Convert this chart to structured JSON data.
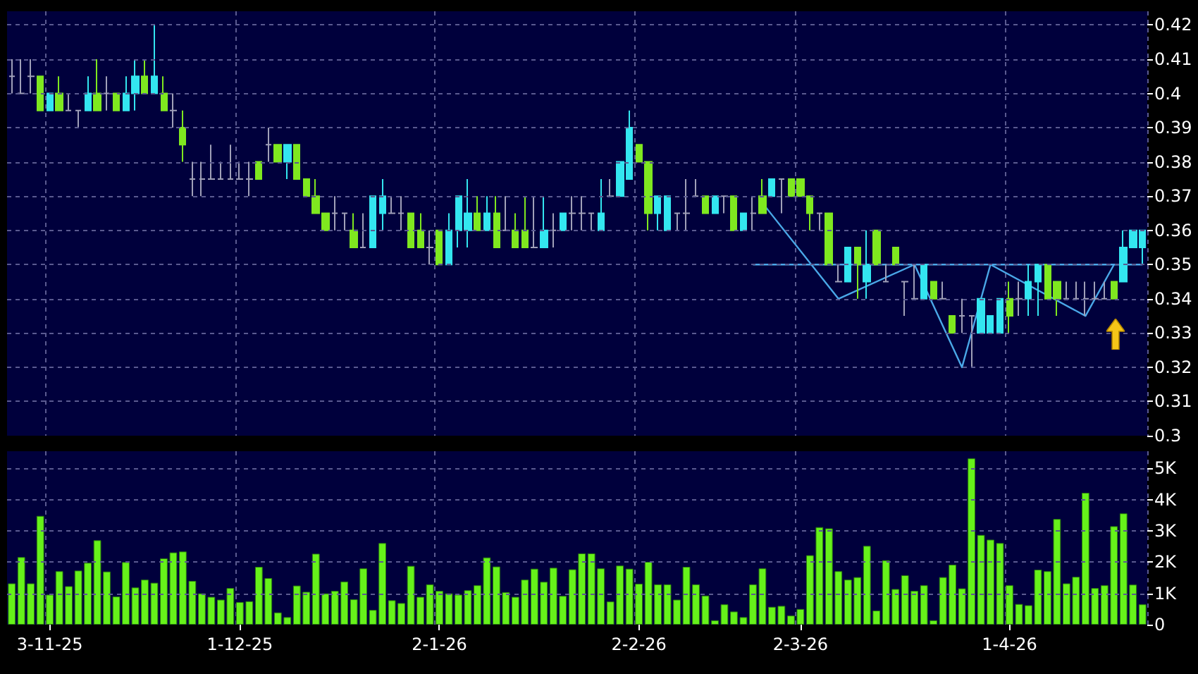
{
  "chart_data": [
    {
      "type": "candlestick",
      "tick_labels": "y",
      "grid": true,
      "line_style": "solid",
      "categories": [
        null,
        null,
        null,
        null,
        null,
        null,
        null,
        null,
        null,
        null,
        null,
        null,
        null,
        null,
        null,
        null,
        null,
        null,
        null,
        null,
        null,
        null,
        null,
        null,
        null,
        null,
        null,
        null,
        null,
        null,
        null,
        null,
        null,
        null,
        null,
        null,
        null,
        null,
        null,
        null,
        null,
        null,
        null,
        null,
        null,
        null,
        null,
        null,
        null,
        null,
        null,
        null,
        null,
        null,
        null,
        null,
        null,
        null,
        null,
        null,
        null,
        null,
        null,
        null,
        null,
        null,
        null,
        null,
        null,
        null,
        null,
        null,
        null,
        null,
        null,
        null,
        null,
        null,
        null,
        null,
        null,
        null,
        null,
        null,
        null,
        null,
        null,
        null,
        null,
        null,
        null,
        null,
        null,
        null,
        null,
        null,
        null,
        null,
        null,
        null,
        null,
        null,
        null,
        null,
        null,
        null,
        null,
        null,
        null,
        null,
        null,
        null,
        null,
        null,
        null,
        null,
        null,
        null,
        null,
        null
      ],
      "ylim": [
        0.3,
        0.424
      ],
      "yticks": [
        0.3,
        0.31,
        0.32,
        0.33,
        0.34,
        0.35,
        0.36,
        0.37,
        0.38,
        0.39,
        0.4,
        0.41,
        0.42
      ],
      "ohlc": [
        [
          0.405,
          0.41,
          0.4,
          0.405
        ],
        [
          0.4,
          0.41,
          0.4,
          0.4
        ],
        [
          0.405,
          0.41,
          0.4,
          0.405
        ],
        [
          0.405,
          0.405,
          0.395,
          0.395
        ],
        [
          0.395,
          0.4,
          0.395,
          0.4
        ],
        [
          0.4,
          0.405,
          0.395,
          0.395
        ],
        [
          0.395,
          0.4,
          0.395,
          0.395
        ],
        [
          0.395,
          0.395,
          0.39,
          0.395
        ],
        [
          0.395,
          0.405,
          0.395,
          0.4
        ],
        [
          0.4,
          0.41,
          0.395,
          0.395
        ],
        [
          0.4,
          0.405,
          0.395,
          0.4
        ],
        [
          0.4,
          0.4,
          0.395,
          0.395
        ],
        [
          0.395,
          0.405,
          0.395,
          0.4
        ],
        [
          0.4,
          0.41,
          0.395,
          0.405
        ],
        [
          0.405,
          0.41,
          0.4,
          0.4
        ],
        [
          0.4,
          0.42,
          0.4,
          0.405
        ],
        [
          0.4,
          0.405,
          0.395,
          0.395
        ],
        [
          0.395,
          0.4,
          0.39,
          0.395
        ],
        [
          0.39,
          0.395,
          0.38,
          0.385
        ],
        [
          0.375,
          0.38,
          0.37,
          0.375
        ],
        [
          0.375,
          0.38,
          0.37,
          0.375
        ],
        [
          0.375,
          0.385,
          0.375,
          0.375
        ],
        [
          0.375,
          0.38,
          0.375,
          0.375
        ],
        [
          0.375,
          0.385,
          0.375,
          0.375
        ],
        [
          0.375,
          0.38,
          0.375,
          0.375
        ],
        [
          0.375,
          0.38,
          0.37,
          0.375
        ],
        [
          0.38,
          0.38,
          0.375,
          0.375
        ],
        [
          0.385,
          0.39,
          0.38,
          0.385
        ],
        [
          0.385,
          0.385,
          0.38,
          0.38
        ],
        [
          0.38,
          0.385,
          0.375,
          0.385
        ],
        [
          0.385,
          0.385,
          0.375,
          0.375
        ],
        [
          0.375,
          0.375,
          0.37,
          0.37
        ],
        [
          0.37,
          0.375,
          0.365,
          0.365
        ],
        [
          0.365,
          0.365,
          0.36,
          0.36
        ],
        [
          0.365,
          0.37,
          0.36,
          0.365
        ],
        [
          0.365,
          0.365,
          0.36,
          0.365
        ],
        [
          0.36,
          0.365,
          0.355,
          0.355
        ],
        [
          0.355,
          0.365,
          0.355,
          0.355
        ],
        [
          0.355,
          0.37,
          0.355,
          0.37
        ],
        [
          0.365,
          0.375,
          0.36,
          0.37
        ],
        [
          0.365,
          0.37,
          0.365,
          0.365
        ],
        [
          0.365,
          0.37,
          0.36,
          0.365
        ],
        [
          0.365,
          0.365,
          0.355,
          0.355
        ],
        [
          0.36,
          0.365,
          0.355,
          0.355
        ],
        [
          0.355,
          0.36,
          0.35,
          0.355
        ],
        [
          0.36,
          0.36,
          0.35,
          0.35
        ],
        [
          0.35,
          0.365,
          0.35,
          0.36
        ],
        [
          0.36,
          0.37,
          0.355,
          0.37
        ],
        [
          0.36,
          0.375,
          0.355,
          0.365
        ],
        [
          0.365,
          0.37,
          0.36,
          0.36
        ],
        [
          0.36,
          0.37,
          0.36,
          0.365
        ],
        [
          0.365,
          0.37,
          0.355,
          0.355
        ],
        [
          0.36,
          0.37,
          0.36,
          0.36
        ],
        [
          0.36,
          0.365,
          0.355,
          0.355
        ],
        [
          0.36,
          0.37,
          0.355,
          0.355
        ],
        [
          0.355,
          0.37,
          0.355,
          0.355
        ],
        [
          0.355,
          0.37,
          0.355,
          0.36
        ],
        [
          0.36,
          0.365,
          0.355,
          0.36
        ],
        [
          0.36,
          0.365,
          0.36,
          0.365
        ],
        [
          0.365,
          0.37,
          0.36,
          0.365
        ],
        [
          0.365,
          0.37,
          0.36,
          0.365
        ],
        [
          0.365,
          0.365,
          0.36,
          0.365
        ],
        [
          0.36,
          0.375,
          0.36,
          0.365
        ],
        [
          0.37,
          0.375,
          0.37,
          0.37
        ],
        [
          0.37,
          0.38,
          0.37,
          0.38
        ],
        [
          0.375,
          0.395,
          0.375,
          0.39
        ],
        [
          0.385,
          0.385,
          0.38,
          0.38
        ],
        [
          0.38,
          0.38,
          0.36,
          0.365
        ],
        [
          0.365,
          0.37,
          0.36,
          0.37
        ],
        [
          0.36,
          0.37,
          0.36,
          0.37
        ],
        [
          0.365,
          0.365,
          0.36,
          0.365
        ],
        [
          0.365,
          0.375,
          0.36,
          0.365
        ],
        [
          0.37,
          0.375,
          0.37,
          0.37
        ],
        [
          0.37,
          0.37,
          0.365,
          0.365
        ],
        [
          0.365,
          0.37,
          0.365,
          0.37
        ],
        [
          0.37,
          0.37,
          0.365,
          0.37
        ],
        [
          0.37,
          0.37,
          0.36,
          0.36
        ],
        [
          0.36,
          0.365,
          0.36,
          0.365
        ],
        [
          0.365,
          0.37,
          0.36,
          0.365
        ],
        [
          0.37,
          0.375,
          0.365,
          0.365
        ],
        [
          0.37,
          0.375,
          0.37,
          0.375
        ],
        [
          0.375,
          0.375,
          0.365,
          0.375
        ],
        [
          0.375,
          0.375,
          0.37,
          0.37
        ],
        [
          0.375,
          0.375,
          0.37,
          0.37
        ],
        [
          0.37,
          0.37,
          0.36,
          0.365
        ],
        [
          0.365,
          0.365,
          0.36,
          0.365
        ],
        [
          0.365,
          0.365,
          0.35,
          0.35
        ],
        [
          0.345,
          0.35,
          0.345,
          0.345
        ],
        [
          0.345,
          0.355,
          0.345,
          0.355
        ],
        [
          0.355,
          0.355,
          0.34,
          0.35
        ],
        [
          0.345,
          0.36,
          0.34,
          0.35
        ],
        [
          0.36,
          0.36,
          0.35,
          0.35
        ],
        [
          0.345,
          0.35,
          0.345,
          0.345
        ],
        [
          0.355,
          0.355,
          0.35,
          0.35
        ],
        [
          0.345,
          0.345,
          0.335,
          0.345
        ],
        [
          0.34,
          0.35,
          0.34,
          0.34
        ],
        [
          0.34,
          0.35,
          0.34,
          0.35
        ],
        [
          0.345,
          0.345,
          0.34,
          0.34
        ],
        [
          0.34,
          0.345,
          0.34,
          0.34
        ],
        [
          0.335,
          0.335,
          0.33,
          0.33
        ],
        [
          0.335,
          0.34,
          0.33,
          0.335
        ],
        [
          0.335,
          0.335,
          0.32,
          0.335
        ],
        [
          0.33,
          0.34,
          0.33,
          0.34
        ],
        [
          0.33,
          0.335,
          0.33,
          0.335
        ],
        [
          0.33,
          0.34,
          0.33,
          0.34
        ],
        [
          0.34,
          0.345,
          0.33,
          0.335
        ],
        [
          0.34,
          0.345,
          0.335,
          0.34
        ],
        [
          0.34,
          0.35,
          0.335,
          0.345
        ],
        [
          0.345,
          0.35,
          0.335,
          0.35
        ],
        [
          0.35,
          0.35,
          0.34,
          0.34
        ],
        [
          0.345,
          0.345,
          0.335,
          0.34
        ],
        [
          0.34,
          0.345,
          0.34,
          0.34
        ],
        [
          0.34,
          0.345,
          0.34,
          0.34
        ],
        [
          0.34,
          0.345,
          0.335,
          0.34
        ],
        [
          0.34,
          0.345,
          0.34,
          0.34
        ],
        [
          0.34,
          0.345,
          0.34,
          0.34
        ],
        [
          0.345,
          0.345,
          0.34,
          0.34
        ],
        [
          0.345,
          0.36,
          0.345,
          0.355
        ],
        [
          0.355,
          0.36,
          0.355,
          0.36
        ],
        [
          0.355,
          0.36,
          0.35,
          0.36
        ]
      ],
      "colors": [
        "#a0a0b8",
        "#a0a0b8",
        "#a0a0b8",
        "#7fe81f",
        "#33e6f0",
        "#7fe81f",
        "#a0a0b8",
        "#a0a0b8",
        "#33e6f0",
        "#7fe81f",
        "#a0a0b8",
        "#7fe81f",
        "#33e6f0",
        "#33e6f0",
        "#7fe81f",
        "#33e6f0",
        "#7fe81f",
        "#a0a0b8",
        "#7fe81f",
        "#a0a0b8",
        "#a0a0b8",
        "#a0a0b8",
        "#a0a0b8",
        "#a0a0b8",
        "#a0a0b8",
        "#a0a0b8",
        "#7fe81f",
        "#a0a0b8",
        "#7fe81f",
        "#33e6f0",
        "#7fe81f",
        "#7fe81f",
        "#7fe81f",
        "#7fe81f",
        "#a0a0b8",
        "#a0a0b8",
        "#7fe81f",
        "#a0a0b8",
        "#33e6f0",
        "#33e6f0",
        "#a0a0b8",
        "#a0a0b8",
        "#7fe81f",
        "#7fe81f",
        "#a0a0b8",
        "#7fe81f",
        "#33e6f0",
        "#33e6f0",
        "#33e6f0",
        "#7fe81f",
        "#33e6f0",
        "#7fe81f",
        "#a0a0b8",
        "#7fe81f",
        "#7fe81f",
        "#a0a0b8",
        "#33e6f0",
        "#a0a0b8",
        "#33e6f0",
        "#a0a0b8",
        "#a0a0b8",
        "#a0a0b8",
        "#33e6f0",
        "#a0a0b8",
        "#33e6f0",
        "#33e6f0",
        "#7fe81f",
        "#7fe81f",
        "#33e6f0",
        "#33e6f0",
        "#a0a0b8",
        "#a0a0b8",
        "#a0a0b8",
        "#7fe81f",
        "#33e6f0",
        "#a0a0b8",
        "#7fe81f",
        "#33e6f0",
        "#a0a0b8",
        "#7fe81f",
        "#33e6f0",
        "#a0a0b8",
        "#7fe81f",
        "#7fe81f",
        "#7fe81f",
        "#a0a0b8",
        "#7fe81f",
        "#a0a0b8",
        "#33e6f0",
        "#7fe81f",
        "#33e6f0",
        "#7fe81f",
        "#a0a0b8",
        "#7fe81f",
        "#a0a0b8",
        "#a0a0b8",
        "#33e6f0",
        "#7fe81f",
        "#a0a0b8",
        "#7fe81f",
        "#a0a0b8",
        "#a0a0b8",
        "#33e6f0",
        "#33e6f0",
        "#33e6f0",
        "#7fe81f",
        "#a0a0b8",
        "#33e6f0",
        "#33e6f0",
        "#7fe81f",
        "#7fe81f",
        "#a0a0b8",
        "#a0a0b8",
        "#a0a0b8",
        "#a0a0b8",
        "#a0a0b8",
        "#7fe81f",
        "#33e6f0",
        "#33e6f0",
        "#33e6f0"
      ],
      "series": [
        {
          "type": "line",
          "color": "#4aa8e8",
          "values": [
            null,
            null,
            null,
            null,
            null,
            null,
            null,
            null,
            null,
            null,
            null,
            null,
            null,
            null,
            null,
            null,
            null,
            null,
            null,
            null,
            null,
            null,
            null,
            null,
            null,
            null,
            null,
            null,
            null,
            null,
            null,
            null,
            null,
            null,
            null,
            null,
            null,
            null,
            null,
            null,
            null,
            null,
            null,
            null,
            null,
            null,
            null,
            null,
            null,
            null,
            null,
            null,
            null,
            null,
            null,
            null,
            null,
            null,
            null,
            null,
            null,
            null,
            null,
            null,
            null,
            null,
            null,
            null,
            null,
            null,
            null,
            null,
            null,
            null,
            null,
            null,
            null,
            null,
            null,
            0.368,
            null,
            null,
            null,
            null,
            null,
            null,
            null,
            0.34,
            null,
            null,
            null,
            null,
            null,
            null,
            null,
            0.35,
            null,
            null,
            null,
            null,
            0.32,
            null,
            null,
            0.35,
            null,
            null,
            null,
            null,
            null,
            null,
            null,
            null,
            null,
            0.335,
            null,
            null,
            0.35,
            null,
            null,
            null
          ]
        },
        {
          "type": "line",
          "color": "#4aa8e8",
          "values": [
            null,
            null,
            null,
            null,
            null,
            null,
            null,
            null,
            null,
            null,
            null,
            null,
            null,
            null,
            null,
            null,
            null,
            null,
            null,
            null,
            null,
            null,
            null,
            null,
            null,
            null,
            null,
            null,
            null,
            null,
            null,
            null,
            null,
            null,
            null,
            null,
            null,
            null,
            null,
            null,
            null,
            null,
            null,
            null,
            null,
            null,
            null,
            null,
            null,
            null,
            null,
            null,
            null,
            null,
            null,
            null,
            null,
            null,
            null,
            null,
            null,
            null,
            null,
            null,
            null,
            null,
            null,
            null,
            null,
            null,
            null,
            null,
            null,
            null,
            null,
            null,
            null,
            null,
            0.35,
            null,
            null,
            null,
            null,
            null,
            null,
            null,
            null,
            null,
            null,
            null,
            null,
            null,
            null,
            null,
            null,
            null,
            null,
            null,
            null,
            null,
            null,
            null,
            null,
            null,
            null,
            null,
            null,
            null,
            null,
            null,
            null,
            null,
            null,
            null,
            null,
            null,
            null,
            null,
            null,
            0.35
          ]
        }
      ]
    },
    {
      "type": "bar",
      "grid": true,
      "color": "#66f21a",
      "categories": [
        null,
        null,
        null,
        null,
        "3-11-25",
        null,
        null,
        null,
        null,
        null,
        null,
        null,
        null,
        null,
        null,
        null,
        null,
        null,
        null,
        null,
        null,
        null,
        null,
        null,
        "1-12-25",
        null,
        null,
        null,
        null,
        null,
        null,
        null,
        null,
        null,
        null,
        null,
        null,
        null,
        null,
        null,
        null,
        null,
        null,
        null,
        null,
        "2-1-26",
        null,
        null,
        null,
        null,
        null,
        null,
        null,
        null,
        null,
        null,
        null,
        null,
        null,
        null,
        null,
        null,
        null,
        null,
        null,
        null,
        "2-2-26",
        null,
        null,
        null,
        null,
        null,
        null,
        null,
        null,
        null,
        null,
        null,
        null,
        null,
        null,
        null,
        null,
        "2-3-26",
        null,
        null,
        null,
        null,
        null,
        null,
        null,
        null,
        null,
        null,
        null,
        null,
        null,
        null,
        null,
        null,
        null,
        null,
        null,
        null,
        null,
        "1-4-26",
        null,
        null,
        null,
        null,
        null,
        null,
        null,
        null,
        null,
        null,
        null,
        null,
        null,
        null
      ],
      "ylim": [
        0,
        5550
      ],
      "yticks": [
        0,
        {
          "value": 1000,
          "label": "1K"
        },
        {
          "value": 2000,
          "label": "2K"
        },
        {
          "value": 3000,
          "label": "3K"
        },
        {
          "value": 4000,
          "label": "4K"
        },
        {
          "value": 5000,
          "label": "5K"
        }
      ],
      "values": [
        1320,
        2160,
        1320,
        3480,
        960,
        1710,
        1230,
        1730,
        1980,
        2700,
        1700,
        900,
        2000,
        1190,
        1440,
        1340,
        2120,
        2310,
        2340,
        1400,
        1000,
        890,
        800,
        1170,
        720,
        750,
        1850,
        1490,
        390,
        240,
        1250,
        1050,
        2270,
        1000,
        1080,
        1380,
        810,
        1800,
        470,
        2610,
        780,
        690,
        1880,
        890,
        1290,
        1080,
        1000,
        960,
        1100,
        1260,
        2150,
        1860,
        1040,
        890,
        1440,
        1790,
        1370,
        1820,
        920,
        1770,
        2280,
        2280,
        1800,
        740,
        1890,
        1790,
        1310,
        2010,
        1290,
        1290,
        800,
        1850,
        1290,
        930,
        140,
        650,
        420,
        240,
        1290,
        1800,
        570,
        600,
        290,
        500,
        2220,
        3120,
        3080,
        1710,
        1440,
        1520,
        2520,
        450,
        2060,
        1140,
        1580,
        1080,
        1260,
        140,
        1520,
        1920,
        1160,
        5320,
        2870,
        2720,
        2610,
        1260,
        660,
        620,
        1760,
        1710,
        3380,
        1320,
        1530,
        4220,
        1170,
        1260,
        3150,
        3560,
        1280,
        650
      ]
    }
  ]
}
